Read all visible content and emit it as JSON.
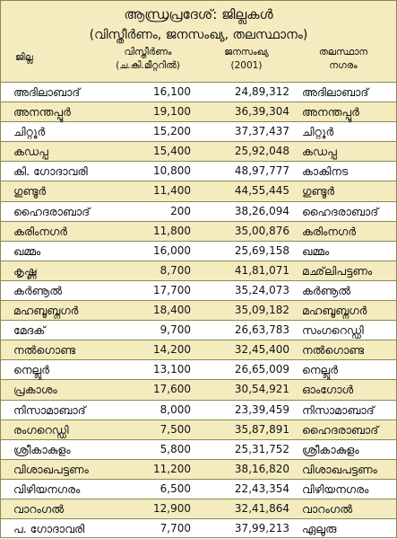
{
  "title": "ആന്ധ്രപ്രദേശ്: ജില്ലകൾ",
  "subtitle": "(വിസ്തീർണം, ജനസംഖ്യ, തലസ്ഥാനം)",
  "columns": {
    "district": "ജില്ല",
    "area_line1": "വിസ്തീർണം",
    "area_line2": "(ച.കി.മീറ്ററിൽ)",
    "pop_line1": "ജനസംഖ്യ",
    "pop_line2": "(2001)",
    "hq_line1": "തലസ്ഥാന",
    "hq_line2": "നഗരം"
  },
  "rows": [
    {
      "district": "അദിലാബാദ്",
      "area": "16,100",
      "population": "24,89,312",
      "hq": "അദിലാബാദ്"
    },
    {
      "district": "അനന്തപ്പൂർ",
      "area": "19,100",
      "population": "36,39,304",
      "hq": "അനന്തപ്പൂർ"
    },
    {
      "district": "ചിറ്റൂർ",
      "area": "15,200",
      "population": "37,37,437",
      "hq": "ചിറ്റൂർ"
    },
    {
      "district": "കഡപ്പ",
      "area": "15,400",
      "population": "25,92,048",
      "hq": "കഡപ്പ"
    },
    {
      "district": "കി. ഗോദാവരി",
      "area": "10,800",
      "population": "48,97,777",
      "hq": "കാകിനട"
    },
    {
      "district": "ഗുണ്ടൂർ",
      "area": "11,400",
      "population": "44,55,445",
      "hq": "ഗുണ്ടൂർ"
    },
    {
      "district": "ഹൈദരാബാദ്",
      "area": "200",
      "population": "38,26,094",
      "hq": "ഹൈദരാബാദ്"
    },
    {
      "district": "കരിംനഗർ",
      "area": "11,800",
      "population": "35,00,876",
      "hq": "കരിംനഗർ"
    },
    {
      "district": "ഖമ്മം",
      "area": "16,000",
      "population": "25,69,158",
      "hq": "ഖമ്മം"
    },
    {
      "district": "കൃഷ്ണ",
      "area": "8,700",
      "population": "41,81,071",
      "hq": "മഛ്‌ലിപട്ടണം"
    },
    {
      "district": "കർണൂൽ",
      "area": "17,700",
      "population": "35,24,073",
      "hq": "കർണൂൽ"
    },
    {
      "district": "മഹബൂബ്നഗർ",
      "area": "18,400",
      "population": "35,09,182",
      "hq": "മഹബൂബ്നഗർ"
    },
    {
      "district": "മേദക്",
      "area": "9,700",
      "population": "26,63,783",
      "hq": "സംഗറെഡ്ഡി"
    },
    {
      "district": "നൽഗൊണ്ട",
      "area": "14,200",
      "population": "32,45,400",
      "hq": "നൽഗൊണ്ട"
    },
    {
      "district": "നെല്ലൂർ",
      "area": "13,100",
      "population": "26,65,009",
      "hq": "നെല്ലൂർ"
    },
    {
      "district": "പ്രകാശം",
      "area": "17,600",
      "population": "30,54,921",
      "hq": "ഓംഗോൾ"
    },
    {
      "district": "നിസാമാബാദ്",
      "area": "8,000",
      "population": "23,39,459",
      "hq": "നിസാമാബാദ്"
    },
    {
      "district": "രംഗറെഡ്ഡി",
      "area": "7,500",
      "population": "35,87,891",
      "hq": "ഹൈദരാബാദ്"
    },
    {
      "district": "ശ്രീകാകുളം",
      "area": "5,800",
      "population": "25,31,752",
      "hq": "ശ്രീകാകുളം"
    },
    {
      "district": "വിശാഖപട്ടണം",
      "area": "11,200",
      "population": "38,16,820",
      "hq": "വിശാഖപട്ടണം"
    },
    {
      "district": "വിഴിയനഗരം",
      "area": "6,500",
      "population": "22,43,354",
      "hq": "വിഴിയനഗരം"
    },
    {
      "district": "വാറംഗൽ",
      "area": "12,900",
      "population": "32,41,864",
      "hq": "വാറംഗൽ"
    },
    {
      "district": "പ. ഗോദാവരി",
      "area": "7,700",
      "population": "37,99,213",
      "hq": "ഏലൂരു"
    }
  ]
}
